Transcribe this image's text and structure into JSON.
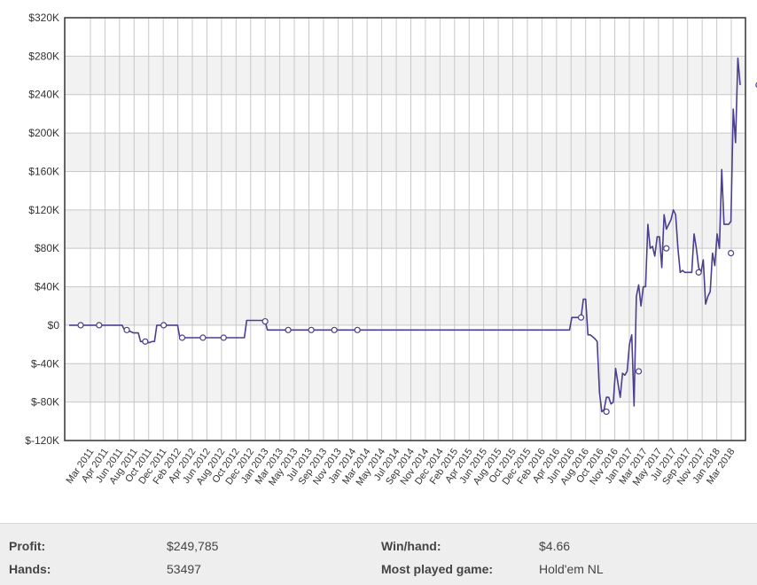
{
  "chart_data": {
    "type": "line",
    "ylim": [
      -120000,
      320000
    ],
    "yticks": [
      "$320K",
      "$280K",
      "$240K",
      "$200K",
      "$160K",
      "$120K",
      "$80K",
      "$40K",
      "$0",
      "$-40K",
      "$-80K",
      "$-120K"
    ],
    "ytick_values": [
      320000,
      280000,
      240000,
      200000,
      160000,
      120000,
      80000,
      40000,
      0,
      -40000,
      -80000,
      -120000
    ],
    "xticks": [
      "Mar 2011",
      "Apr 2011",
      "Jun 2011",
      "Aug 2011",
      "Oct 2011",
      "Dec 2011",
      "Feb 2012",
      "Apr 2012",
      "Jun 2012",
      "Aug 2012",
      "Oct 2012",
      "Dec 2012",
      "Jan 2013",
      "Mar 2013",
      "May 2013",
      "Jul 2013",
      "Sep 2013",
      "Nov 2013",
      "Jan 2014",
      "Mar 2014",
      "May 2014",
      "Jul 2014",
      "Sep 2014",
      "Nov 2014",
      "Dec 2014",
      "Feb 2015",
      "Apr 2015",
      "Jun 2015",
      "Aug 2015",
      "Oct 2015",
      "Dec 2015",
      "Feb 2016",
      "Apr 2016",
      "Jun 2016",
      "Aug 2016",
      "Oct 2016",
      "Nov 2016",
      "Jan 2017",
      "Mar 2017",
      "May 2017",
      "Jul 2017",
      "Sep 2017",
      "Nov 2017",
      "Jan 2018",
      "Mar 2018"
    ],
    "grid": true,
    "line_color": "#4b3f8f",
    "series": [
      {
        "values": [
          0,
          0,
          0,
          0,
          0,
          0,
          0,
          0,
          0,
          0,
          0,
          0,
          0,
          0,
          0,
          0,
          0,
          0,
          0,
          0,
          0,
          0,
          0,
          0,
          -5000,
          -5000,
          -6000,
          -7000,
          -8000,
          -8000,
          -8000,
          -17000,
          -17000,
          -17000,
          -18000,
          -18000,
          -17000,
          -17000,
          0,
          0,
          0,
          0,
          0,
          0,
          0,
          0,
          0,
          0,
          -13000,
          -13000,
          -13000,
          -13000,
          -13000,
          -13000,
          -13000,
          -13000,
          -13000,
          -13000,
          -13000,
          -13000,
          -13000,
          -13000,
          -13000,
          -13000,
          -13000,
          -13000,
          -13000,
          -13000,
          -13000,
          -13000,
          -13000,
          -13000,
          -13000,
          -13000,
          -13000,
          -13000,
          -13000,
          5000,
          5000,
          5000,
          5000,
          5000,
          5000,
          5000,
          5000,
          4000,
          -5000,
          -5000,
          -5000,
          -5000,
          -5000,
          -5000,
          -5000,
          -5000,
          -5000,
          -5000,
          -5000,
          -5000,
          -5000,
          -5000,
          -5000,
          -5000,
          -5000,
          -5000,
          -5000,
          -5000,
          -5000,
          -5000,
          -5000,
          -5000,
          -5000,
          -5000,
          -5000,
          -5000,
          -5000,
          -5000,
          -5000,
          -5000,
          -5000,
          -5000,
          -5000,
          -5000,
          -5000,
          -5000,
          -5000,
          -5000,
          -5000,
          -5000,
          -5000,
          -5000,
          -5000,
          -5000,
          -5000,
          -5000,
          -5000,
          -5000,
          -5000,
          -5000,
          -5000,
          -5000,
          -5000,
          -5000,
          -5000,
          -5000,
          -5000,
          -5000,
          -5000,
          -5000,
          -5000,
          -5000,
          -5000,
          -5000,
          -5000,
          -5000,
          -5000,
          -5000,
          -5000,
          -5000,
          -5000,
          -5000,
          -5000,
          -5000,
          -5000,
          -5000,
          -5000,
          -5000,
          -5000,
          -5000,
          -5000,
          -5000,
          -5000,
          -5000,
          -5000,
          -5000,
          -5000,
          -5000,
          -5000,
          -5000,
          -5000,
          -5000,
          -5000,
          -5000,
          -5000,
          -5000,
          -5000,
          -5000,
          -5000,
          -5000,
          -5000,
          -5000,
          -5000,
          -5000,
          -5000,
          -5000,
          -5000,
          -5000,
          -5000,
          -5000,
          -5000,
          -5000,
          -5000,
          -5000,
          -5000,
          -5000,
          -5000,
          -5000,
          -5000,
          -5000,
          -5000,
          -5000,
          -5000,
          -5000,
          -5000,
          -5000,
          -5000,
          -5000,
          -5000,
          -5000,
          8000,
          8000,
          8000,
          8000,
          8000,
          27000,
          27000,
          -10000,
          -10000,
          -12000,
          -14000,
          -17000,
          -70000,
          -90000,
          -88000,
          -75000,
          -75000,
          -82000,
          -80000,
          -45000,
          -60000,
          -75000,
          -50000,
          -52000,
          -48000,
          -20000,
          -10000,
          -84000,
          30000,
          42000,
          20000,
          40000,
          40000,
          105000,
          80000,
          82000,
          72000,
          92000,
          92000,
          60000,
          115000,
          100000,
          105000,
          110000,
          120000,
          115000,
          80000,
          55000,
          57000,
          55000,
          55000,
          55000,
          55000,
          95000,
          80000,
          60000,
          55000,
          68000,
          22000,
          30000,
          35000,
          75000,
          62000,
          95000,
          80000,
          162000,
          105000,
          105000,
          105000,
          108000,
          225000,
          190000,
          278000,
          250000
        ]
      }
    ],
    "markers": [
      {
        "i": 5,
        "v": 0
      },
      {
        "i": 13,
        "v": 0
      },
      {
        "i": 25,
        "v": -5000
      },
      {
        "i": 33,
        "v": -17000
      },
      {
        "i": 41,
        "v": 0
      },
      {
        "i": 49,
        "v": -13000
      },
      {
        "i": 58,
        "v": -13000
      },
      {
        "i": 67,
        "v": -13000
      },
      {
        "i": 85,
        "v": 4000
      },
      {
        "i": 95,
        "v": -5000
      },
      {
        "i": 105,
        "v": -5000
      },
      {
        "i": 115,
        "v": -5000
      },
      {
        "i": 125,
        "v": -5000
      },
      {
        "i": 222,
        "v": 8000
      },
      {
        "i": 233,
        "v": -90000
      },
      {
        "i": 247,
        "v": -48000
      },
      {
        "i": 259,
        "v": 80000
      },
      {
        "i": 273,
        "v": 55000
      },
      {
        "i": 287,
        "v": 75000
      },
      {
        "i": 299,
        "v": 250000
      }
    ]
  },
  "stats": {
    "profit_label": "Profit:",
    "profit_value": "$249,785",
    "hands_label": "Hands:",
    "hands_value": "53497",
    "winhand_label": "Win/hand:",
    "winhand_value": "$4.66",
    "game_label": "Most played game:",
    "game_value": "Hold'em NL"
  }
}
